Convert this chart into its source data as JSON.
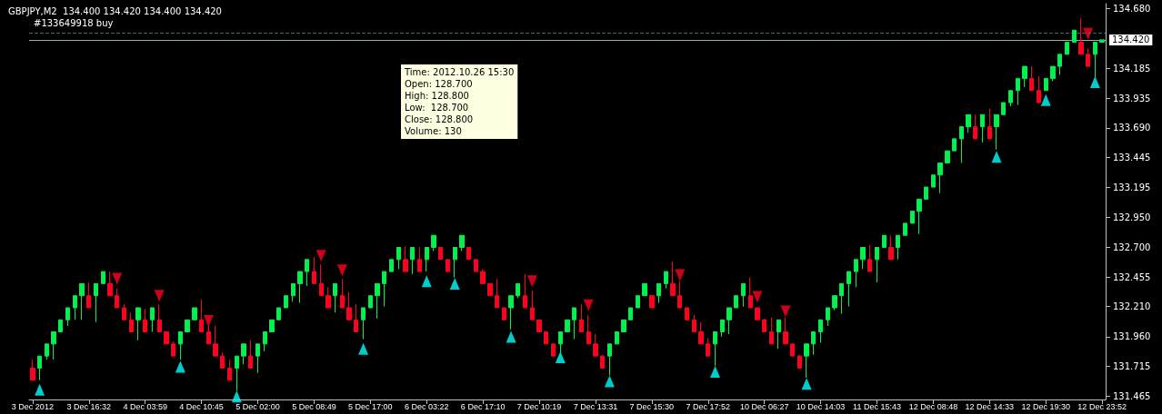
{
  "chart_data": {
    "type": "candlestick",
    "title": "GBPJPY,M2  134.400 134.420 134.400 134.420",
    "annotations": [
      "Time: 2012.10.26 15:30",
      "Open: 128.700",
      "High: 128.800",
      "Low:  128.700",
      "Close: 128.800",
      "Volume: 130"
    ],
    "categories": [
      "3 Dec 2012",
      null,
      null,
      null,
      null,
      null,
      null,
      null,
      "3 Dec 16:32",
      null,
      null,
      null,
      null,
      null,
      null,
      null,
      "4 Dec 03:59",
      null,
      null,
      null,
      null,
      null,
      null,
      null,
      "4 Dec 10:45",
      null,
      null,
      null,
      null,
      null,
      null,
      null,
      "5 Dec 02:00",
      null,
      null,
      null,
      null,
      null,
      null,
      null,
      "5 Dec 08:49",
      null,
      null,
      null,
      null,
      null,
      null,
      null,
      "5 Dec 17:00",
      null,
      null,
      null,
      null,
      null,
      null,
      null,
      "6 Dec 03:22",
      null,
      null,
      null,
      null,
      null,
      null,
      null,
      "6 Dec 17:10",
      null,
      null,
      null,
      null,
      null,
      null,
      null,
      "7 Dec 10:19",
      null,
      null,
      null,
      null,
      null,
      null,
      null,
      "7 Dec 13:31",
      null,
      null,
      null,
      null,
      null,
      null,
      null,
      "7 Dec 15:30",
      null,
      null,
      null,
      null,
      null,
      null,
      null,
      "7 Dec 17:52",
      null,
      null,
      null,
      null,
      null,
      null,
      null,
      "10 Dec 06:27",
      null,
      null,
      null,
      null,
      null,
      null,
      null,
      "10 Dec 14:03",
      null,
      null,
      null,
      null,
      null,
      null,
      null,
      "11 Dec 15:43",
      null,
      null,
      null,
      null,
      null,
      null,
      null,
      "12 Dec 08:48",
      null,
      null,
      null,
      null,
      null,
      null,
      null,
      "12 Dec 14:33",
      null,
      null,
      null,
      null,
      null,
      null,
      null,
      "12 Dec 19:30",
      null,
      null,
      null,
      null,
      null,
      null,
      null,
      "12 Dec 23:52"
    ],
    "series": [
      {
        "colors": [
          "#ff0020",
          "#00f050",
          "#00f050",
          "#00f050",
          "#00f050",
          "#00f050",
          "#00f050",
          "#00f050",
          "#ff0020",
          "#00f050",
          "#00f050",
          "#ff0020",
          "#ff0020",
          "#ff0020",
          "#ff0020",
          "#00f050",
          "#ff0020",
          "#00f050",
          "#ff0020",
          "#ff0020",
          "#ff0020",
          "#00f050",
          "#00f050",
          "#00f050",
          "#ff0020",
          "#ff0020",
          "#ff0020",
          "#ff0020",
          "#ff0020",
          "#00f050",
          "#00f050",
          "#ff0020",
          "#00f050",
          "#00f050",
          "#00f050",
          "#00f050",
          "#00f050",
          "#00f050",
          "#00f050",
          "#00f050",
          "#ff0020",
          "#ff0020",
          "#ff0020",
          "#00f050",
          "#ff0020",
          "#ff0020",
          "#ff0020",
          "#00f050",
          "#00f050",
          "#00f050",
          "#00f050",
          "#00f050",
          "#00f050",
          "#ff0020",
          "#00f050",
          "#ff0020",
          "#00f050",
          "#00f050",
          "#ff0020",
          "#ff0020",
          "#00f050",
          "#00f050",
          "#ff0020",
          "#ff0020",
          "#ff0020",
          "#ff0020",
          "#ff0020",
          "#ff0020",
          "#00f050",
          "#00f050",
          "#ff0020",
          "#ff0020",
          "#ff0020",
          "#ff0020",
          "#ff0020",
          "#00f050",
          "#00f050",
          "#00f050",
          "#ff0020",
          "#ff0020",
          "#ff0020",
          "#ff0020",
          "#00f050",
          "#00f050",
          "#00f050",
          "#00f050",
          "#00f050",
          "#00f050",
          "#ff0020",
          "#00f050",
          "#00f050",
          "#ff0020",
          "#ff0020",
          "#ff0020",
          "#ff0020",
          "#ff0020",
          "#ff0020",
          "#00f050",
          "#00f050",
          "#00f050",
          "#00f050",
          "#00f050",
          "#ff0020",
          "#ff0020",
          "#ff0020",
          "#ff0020",
          "#00f050",
          "#ff0020",
          "#ff0020",
          "#ff0020",
          "#00f050",
          "#00f050",
          "#00f050",
          "#00f050",
          "#00f050",
          "#00f050",
          "#00f050",
          "#00f050",
          "#00f050",
          "#ff0020",
          "#00f050",
          "#00f050",
          "#ff0020",
          "#00f050",
          "#00f050",
          "#00f050",
          "#00f050",
          "#00f050",
          "#00f050",
          "#00f050",
          "#00f050",
          "#00f050",
          "#00f050",
          "#00f050",
          "#ff0020",
          "#00f050",
          "#ff0020",
          "#00f050",
          "#00f050",
          "#00f050",
          "#00f050",
          "#00f050",
          "#ff0020",
          "#ff0020",
          "#00f050",
          "#00f050",
          "#00f050",
          "#00f050",
          "#00f050",
          "#ff0020",
          "#ff0020",
          "#00f050",
          "#00f050"
        ],
        "ohlc": [
          [
            131.7,
            131.77,
            131.6,
            131.6
          ],
          [
            131.7,
            131.8,
            131.6,
            131.8
          ],
          [
            131.8,
            131.9,
            131.77,
            131.9
          ],
          [
            131.9,
            132.0,
            131.77,
            132.0
          ],
          [
            132.0,
            132.1,
            132.0,
            132.1
          ],
          [
            132.1,
            132.2,
            132.05,
            132.2
          ],
          [
            132.2,
            132.3,
            132.1,
            132.3
          ],
          [
            132.3,
            132.4,
            132.1,
            132.4
          ],
          [
            132.3,
            132.41,
            132.2,
            132.2
          ],
          [
            132.3,
            132.4,
            132.08,
            132.4
          ],
          [
            132.4,
            132.5,
            132.4,
            132.5
          ],
          [
            132.4,
            132.5,
            132.3,
            132.3
          ],
          [
            132.3,
            132.36,
            132.2,
            132.2
          ],
          [
            132.2,
            132.23,
            132.1,
            132.1
          ],
          [
            132.1,
            132.16,
            132.0,
            132.0
          ],
          [
            132.1,
            132.2,
            131.93,
            132.2
          ],
          [
            132.1,
            132.19,
            132.0,
            132.0
          ],
          [
            132.1,
            132.2,
            132.0,
            132.2
          ],
          [
            132.1,
            132.23,
            132.0,
            132.0
          ],
          [
            132.0,
            132.0,
            131.9,
            131.9
          ],
          [
            131.9,
            131.92,
            131.8,
            131.8
          ],
          [
            131.9,
            132.0,
            131.77,
            132.0
          ],
          [
            132.0,
            132.1,
            132.0,
            132.1
          ],
          [
            132.1,
            132.2,
            132.1,
            132.2
          ],
          [
            132.1,
            132.27,
            132.0,
            132.0
          ],
          [
            132.0,
            132.06,
            131.9,
            131.9
          ],
          [
            131.9,
            132.05,
            131.8,
            131.8
          ],
          [
            131.8,
            131.83,
            131.7,
            131.7
          ],
          [
            131.7,
            131.77,
            131.6,
            131.6
          ],
          [
            131.7,
            131.8,
            131.51,
            131.8
          ],
          [
            131.8,
            131.9,
            131.73,
            131.9
          ],
          [
            131.8,
            131.93,
            131.7,
            131.7
          ],
          [
            131.8,
            131.9,
            131.66,
            131.9
          ],
          [
            131.9,
            132.0,
            131.84,
            132.0
          ],
          [
            132.0,
            132.1,
            132.0,
            132.1
          ],
          [
            132.1,
            132.2,
            132.1,
            132.2
          ],
          [
            132.2,
            132.3,
            132.2,
            132.3
          ],
          [
            132.3,
            132.4,
            132.25,
            132.4
          ],
          [
            132.4,
            132.5,
            132.24,
            132.5
          ],
          [
            132.5,
            132.6,
            132.38,
            132.6
          ],
          [
            132.5,
            132.62,
            132.4,
            132.4
          ],
          [
            132.4,
            132.56,
            132.3,
            132.3
          ],
          [
            132.3,
            132.37,
            132.2,
            132.2
          ],
          [
            132.3,
            132.4,
            132.16,
            132.4
          ],
          [
            132.3,
            132.44,
            132.2,
            132.2
          ],
          [
            132.2,
            132.33,
            132.1,
            132.1
          ],
          [
            132.1,
            132.23,
            132.0,
            132.0
          ],
          [
            132.1,
            132.2,
            131.94,
            132.2
          ],
          [
            132.2,
            132.3,
            132.2,
            132.3
          ],
          [
            132.3,
            132.4,
            132.11,
            132.4
          ],
          [
            132.4,
            132.5,
            132.21,
            132.5
          ],
          [
            132.5,
            132.6,
            132.5,
            132.6
          ],
          [
            132.6,
            132.7,
            132.52,
            132.7
          ],
          [
            132.6,
            132.71,
            132.5,
            132.5
          ],
          [
            132.6,
            132.7,
            132.48,
            132.7
          ],
          [
            132.6,
            132.7,
            132.5,
            132.5
          ],
          [
            132.6,
            132.7,
            132.5,
            132.7
          ],
          [
            132.7,
            132.8,
            132.67,
            132.8
          ],
          [
            132.7,
            132.7,
            132.6,
            132.6
          ],
          [
            132.6,
            132.6,
            132.5,
            132.5
          ],
          [
            132.6,
            132.7,
            132.45,
            132.7
          ],
          [
            132.7,
            132.8,
            132.67,
            132.8
          ],
          [
            132.7,
            132.7,
            132.6,
            132.6
          ],
          [
            132.6,
            132.6,
            132.5,
            132.5
          ],
          [
            132.5,
            132.52,
            132.4,
            132.4
          ],
          [
            132.4,
            132.4,
            132.3,
            132.3
          ],
          [
            132.3,
            132.44,
            132.2,
            132.2
          ],
          [
            132.2,
            132.2,
            132.1,
            132.1
          ],
          [
            132.2,
            132.3,
            132.02,
            132.3
          ],
          [
            132.3,
            132.4,
            132.28,
            132.4
          ],
          [
            132.3,
            132.48,
            132.2,
            132.2
          ],
          [
            132.2,
            132.34,
            132.1,
            132.1
          ],
          [
            132.1,
            132.1,
            132.0,
            132.0
          ],
          [
            132.0,
            132.0,
            131.9,
            131.9
          ],
          [
            131.9,
            131.9,
            131.8,
            131.8
          ],
          [
            131.9,
            132.0,
            131.8,
            132.0
          ],
          [
            132.0,
            132.1,
            132.0,
            132.1
          ],
          [
            132.1,
            132.2,
            131.94,
            132.2
          ],
          [
            132.1,
            132.23,
            132.0,
            132.0
          ],
          [
            132.0,
            132.14,
            131.9,
            131.9
          ],
          [
            131.9,
            131.98,
            131.8,
            131.8
          ],
          [
            131.8,
            131.81,
            131.7,
            131.7
          ],
          [
            131.8,
            131.9,
            131.64,
            131.9
          ],
          [
            131.9,
            132.0,
            131.9,
            132.0
          ],
          [
            132.0,
            132.1,
            132.0,
            132.1
          ],
          [
            132.1,
            132.2,
            132.1,
            132.2
          ],
          [
            132.2,
            132.3,
            132.2,
            132.3
          ],
          [
            132.3,
            132.4,
            132.3,
            132.4
          ],
          [
            132.3,
            132.3,
            132.2,
            132.2
          ],
          [
            132.3,
            132.4,
            132.24,
            132.4
          ],
          [
            132.4,
            132.5,
            132.36,
            132.5
          ],
          [
            132.4,
            132.58,
            132.3,
            132.3
          ],
          [
            132.3,
            132.42,
            132.2,
            132.2
          ],
          [
            132.2,
            132.2,
            132.1,
            132.1
          ],
          [
            132.1,
            132.14,
            132.0,
            132.0
          ],
          [
            132.0,
            132.08,
            131.9,
            131.9
          ],
          [
            131.9,
            131.95,
            131.8,
            131.8
          ],
          [
            131.9,
            132.0,
            131.72,
            132.0
          ],
          [
            132.0,
            132.1,
            131.96,
            132.1
          ],
          [
            132.1,
            132.2,
            131.98,
            132.2
          ],
          [
            132.2,
            132.3,
            132.2,
            132.3
          ],
          [
            132.3,
            132.4,
            132.21,
            132.4
          ],
          [
            132.3,
            132.45,
            132.2,
            132.2
          ],
          [
            132.2,
            132.2,
            132.1,
            132.1
          ],
          [
            132.1,
            132.11,
            132.0,
            132.0
          ],
          [
            132.0,
            132.12,
            131.9,
            131.9
          ],
          [
            132.0,
            132.1,
            131.86,
            132.1
          ],
          [
            132.0,
            132.12,
            131.9,
            131.9
          ],
          [
            131.9,
            131.9,
            131.8,
            131.8
          ],
          [
            131.8,
            131.81,
            131.7,
            131.7
          ],
          [
            131.8,
            131.9,
            131.62,
            131.9
          ],
          [
            131.9,
            132.0,
            131.81,
            132.0
          ],
          [
            132.0,
            132.1,
            131.91,
            132.1
          ],
          [
            132.1,
            132.2,
            132.05,
            132.2
          ],
          [
            132.2,
            132.3,
            132.18,
            132.3
          ],
          [
            132.3,
            132.4,
            132.15,
            132.4
          ],
          [
            132.4,
            132.5,
            132.21,
            132.5
          ],
          [
            132.5,
            132.6,
            132.37,
            132.6
          ],
          [
            132.6,
            132.7,
            132.52,
            132.7
          ],
          [
            132.6,
            132.72,
            132.5,
            132.5
          ],
          [
            132.6,
            132.7,
            132.41,
            132.7
          ],
          [
            132.7,
            132.8,
            132.7,
            132.8
          ],
          [
            132.7,
            132.8,
            132.6,
            132.6
          ],
          [
            132.7,
            132.8,
            132.6,
            132.8
          ],
          [
            132.8,
            132.9,
            132.8,
            132.9
          ],
          [
            132.9,
            133.0,
            132.9,
            133.0
          ],
          [
            133.0,
            133.1,
            132.81,
            133.1
          ],
          [
            133.1,
            133.2,
            133.1,
            133.2
          ],
          [
            133.2,
            133.3,
            133.2,
            133.3
          ],
          [
            133.3,
            133.4,
            133.15,
            133.4
          ],
          [
            133.4,
            133.5,
            133.4,
            133.5
          ],
          [
            133.5,
            133.6,
            133.5,
            133.6
          ],
          [
            133.6,
            133.7,
            133.4,
            133.7
          ],
          [
            133.7,
            133.8,
            133.65,
            133.8
          ],
          [
            133.7,
            133.8,
            133.6,
            133.6
          ],
          [
            133.7,
            133.8,
            133.57,
            133.8
          ],
          [
            133.7,
            133.85,
            133.6,
            133.6
          ],
          [
            133.7,
            133.8,
            133.51,
            133.8
          ],
          [
            133.8,
            133.9,
            133.8,
            133.9
          ],
          [
            133.9,
            134.0,
            133.87,
            134.0
          ],
          [
            134.0,
            134.1,
            133.88,
            134.1
          ],
          [
            134.1,
            134.2,
            134.03,
            134.2
          ],
          [
            134.1,
            134.2,
            134.0,
            134.0
          ],
          [
            134.0,
            134.12,
            133.9,
            133.9
          ],
          [
            134.0,
            134.1,
            134.0,
            134.1
          ],
          [
            134.1,
            134.2,
            134.08,
            134.2
          ],
          [
            134.2,
            134.3,
            134.13,
            134.3
          ],
          [
            134.3,
            134.4,
            134.3,
            134.4
          ],
          [
            134.4,
            134.5,
            134.4,
            134.5
          ],
          [
            134.4,
            134.6,
            134.3,
            134.3
          ],
          [
            134.3,
            134.35,
            134.2,
            134.2
          ],
          [
            134.3,
            134.4,
            134.11,
            134.4
          ],
          [
            134.4,
            134.42,
            134.4,
            134.42
          ]
        ]
      },
      {
        "type": "scatter",
        "color": "#00ffff",
        "values": [
          null,
          131.52,
          null,
          null,
          null,
          null,
          null,
          null,
          null,
          null,
          null,
          null,
          null,
          null,
          null,
          null,
          null,
          null,
          null,
          null,
          null,
          131.71,
          null,
          null,
          null,
          null,
          null,
          null,
          null,
          131.465,
          null,
          null,
          null,
          null,
          null,
          null,
          null,
          null,
          null,
          null,
          null,
          null,
          null,
          null,
          null,
          null,
          null,
          131.86,
          null,
          null,
          null,
          null,
          null,
          null,
          null,
          null,
          132.42,
          null,
          null,
          null,
          132.4,
          null,
          null,
          null,
          null,
          null,
          null,
          null,
          131.96,
          null,
          null,
          null,
          null,
          null,
          null,
          131.79,
          null,
          null,
          null,
          null,
          null,
          null,
          131.59,
          null,
          null,
          null,
          null,
          null,
          null,
          null,
          null,
          null,
          null,
          null,
          null,
          null,
          null,
          131.67,
          null,
          null,
          null,
          null,
          null,
          null,
          null,
          null,
          null,
          null,
          null,
          null,
          131.57,
          null,
          null,
          null,
          null,
          null,
          null,
          null,
          null,
          null,
          null,
          null,
          null,
          null,
          null,
          null,
          null,
          null,
          null,
          null,
          null,
          null,
          null,
          null,
          null,
          null,
          null,
          133.45,
          null,
          null,
          null,
          null,
          null,
          null,
          133.92,
          null,
          null,
          null,
          null,
          null,
          null,
          134.07,
          null
        ]
      },
      {
        "type": "scatter",
        "color": "#ff0020",
        "values": [
          null,
          null,
          null,
          null,
          null,
          null,
          null,
          null,
          null,
          null,
          null,
          null,
          132.44,
          null,
          null,
          null,
          null,
          null,
          132.3,
          null,
          null,
          null,
          null,
          null,
          null,
          132.09,
          null,
          null,
          null,
          null,
          null,
          null,
          null,
          null,
          null,
          null,
          null,
          null,
          null,
          null,
          null,
          132.63,
          null,
          null,
          132.51,
          null,
          null,
          null,
          null,
          null,
          null,
          null,
          null,
          null,
          null,
          null,
          null,
          null,
          null,
          null,
          null,
          null,
          null,
          null,
          null,
          null,
          null,
          null,
          null,
          null,
          null,
          132.42,
          null,
          null,
          null,
          null,
          null,
          null,
          null,
          132.22,
          null,
          null,
          null,
          null,
          null,
          null,
          null,
          null,
          null,
          null,
          null,
          null,
          132.47,
          null,
          null,
          null,
          null,
          null,
          null,
          null,
          null,
          null,
          null,
          132.29,
          null,
          null,
          null,
          132.17,
          null,
          null,
          null,
          null,
          null,
          null,
          null,
          null,
          null,
          null,
          null,
          null,
          null,
          null,
          null,
          null,
          null,
          null,
          null,
          null,
          null,
          null,
          null,
          null,
          null,
          null,
          null,
          null,
          null,
          null,
          null,
          null,
          null,
          null,
          null,
          null,
          null,
          null,
          null,
          null,
          null,
          null,
          134.47,
          null,
          null
        ]
      }
    ],
    "ylim": [
      131.44,
      134.72
    ],
    "yticks": [
      131.465,
      131.715,
      {
        "value": 131.96,
        "label": "131.960"
      },
      {
        "value": 132.21,
        "label": "132.210"
      },
      132.455,
      {
        "value": 132.7,
        "label": "132.700"
      },
      {
        "value": 132.95,
        "label": "132.950"
      },
      133.195,
      133.445,
      {
        "value": 133.69,
        "label": "133.690"
      },
      133.935,
      134.185,
      {
        "value": 134.68,
        "label": "134.680"
      }
    ],
    "ref_lines": [
      {
        "axis": "y",
        "value": 134.48,
        "label": "#133649918 buy",
        "color": "#2f6f5f",
        "line_style": "dashed"
      },
      {
        "axis": "y",
        "value": 134.42,
        "label": "134.420",
        "color": "#a0a8b0",
        "line_style": "solid"
      }
    ],
    "marker": "triangle",
    "grid": false
  }
}
